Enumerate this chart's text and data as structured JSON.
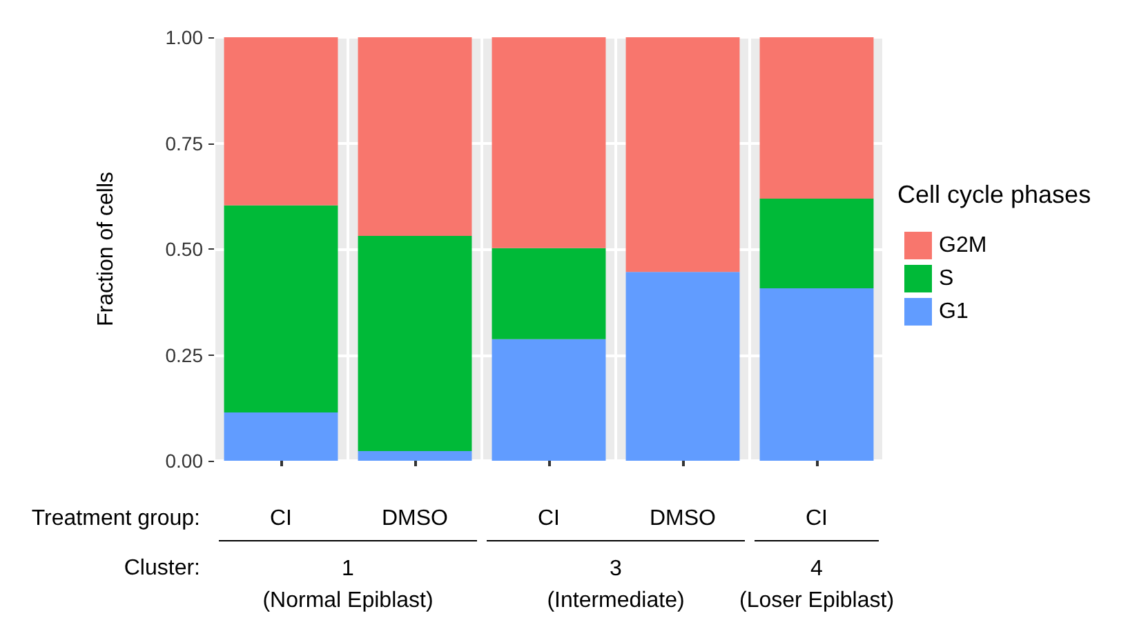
{
  "chart_data": {
    "type": "bar",
    "stacked": true,
    "ylabel": "Fraction of cells",
    "legend_title": "Cell cycle phases",
    "legend": "right",
    "grid": true,
    "categories": [
      "CI",
      "DMSO",
      "CI",
      "DMSO",
      "CI"
    ],
    "series": [
      {
        "name": "G1",
        "color": "#619cff",
        "values": [
          0.114,
          0.023,
          0.287,
          0.446,
          0.407
        ]
      },
      {
        "name": "S",
        "color": "#00ba38",
        "values": [
          0.489,
          0.508,
          0.215,
          0,
          0.212
        ]
      },
      {
        "name": "G2M",
        "color": "#f8766d",
        "values": [
          0.397,
          0.469,
          0.498,
          0.554,
          0.381
        ]
      }
    ],
    "ylim": [
      0,
      1
    ],
    "yticks": [
      {
        "value": 0,
        "label": "0.00"
      },
      {
        "value": 0.25,
        "label": "0.25"
      },
      {
        "value": 0.5,
        "label": "0.50"
      },
      {
        "value": 0.75,
        "label": "0.75"
      },
      {
        "value": 1,
        "label": "1.00"
      }
    ],
    "annotations": [
      "Treatment group:",
      "Cluster:",
      "1\n(Normal Epiblast)",
      "3\n(Intermediate)",
      "4\n(Loser Epiblast)"
    ]
  }
}
